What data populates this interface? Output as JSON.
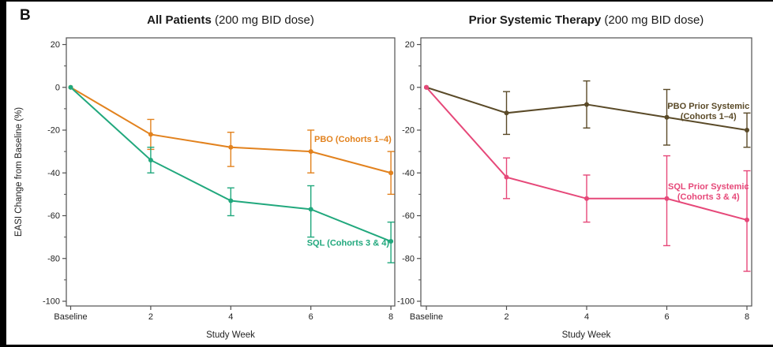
{
  "panel_letter": "B",
  "frame": {
    "border_color": "#000000",
    "background": "#ffffff",
    "axis_color": "#4f4f4f",
    "text_color": "#1f1f1f"
  },
  "chart_data": [
    {
      "type": "line",
      "title_bold": "All Patients",
      "title_rest": " (200 mg BID dose)",
      "xlabel": "Study Week",
      "ylabel": "EASI Change from Baseline (%)",
      "x_tick_labels": [
        "Baseline",
        "2",
        "4",
        "6",
        "8"
      ],
      "x_values": [
        0,
        2,
        4,
        6,
        8
      ],
      "y_ticks": [
        20,
        0,
        -20,
        -40,
        -60,
        -80,
        -100
      ],
      "y_minor_ticks": [
        10,
        -10,
        -30,
        -50,
        -70,
        -90
      ],
      "ylim": [
        -102,
        23
      ],
      "grid": false,
      "legend_position": "inline-annotations",
      "series": [
        {
          "name": "PBO (Cohorts 1–4)",
          "color": "#e2821e",
          "values": [
            0,
            -22,
            -28,
            -30,
            -40
          ],
          "err_hi": [
            null,
            -15,
            -21,
            -20,
            -30
          ],
          "err_lo": [
            null,
            -29,
            -37,
            -40,
            -50
          ],
          "annotation": {
            "lines": [
              "PBO (Cohorts 1–4)"
            ],
            "week": 7.05,
            "value": -24
          }
        },
        {
          "name": "SQL (Cohorts 3 & 4)",
          "color": "#21a87d",
          "values": [
            0,
            -34,
            -53,
            -57,
            -72
          ],
          "err_hi": [
            null,
            -28,
            -47,
            -46,
            -63
          ],
          "err_lo": [
            null,
            -40,
            -60,
            -70,
            -82
          ],
          "annotation": {
            "lines": [
              "SQL (Cohorts 3 & 4)"
            ],
            "week": 6.93,
            "value": -72.5
          }
        }
      ]
    },
    {
      "type": "line",
      "title_bold": "Prior Systemic Therapy",
      "title_rest": " (200 mg BID dose)",
      "xlabel": "Study Week",
      "ylabel": "",
      "x_tick_labels": [
        "Baseline",
        "2",
        "4",
        "6",
        "8"
      ],
      "x_values": [
        0,
        2,
        4,
        6,
        8
      ],
      "y_ticks": [
        20,
        0,
        -20,
        -40,
        -60,
        -80,
        -100
      ],
      "y_minor_ticks": [
        10,
        -10,
        -30,
        -50,
        -70,
        -90
      ],
      "ylim": [
        -102,
        23
      ],
      "grid": false,
      "legend_position": "inline-annotations",
      "series": [
        {
          "name": "PBO Prior Systemic (Cohorts 1–4)",
          "color": "#5a4a28",
          "values": [
            0,
            -12,
            -8,
            -14,
            -20
          ],
          "err_hi": [
            null,
            -2,
            3,
            -1,
            -12
          ],
          "err_lo": [
            null,
            -22,
            -19,
            -27,
            -28
          ],
          "annotation": {
            "lines": [
              "PBO Prior Systemic",
              "(Cohorts 1–4)"
            ],
            "week": 7.04,
            "value": -11
          }
        },
        {
          "name": "SQL Prior Systemic (Cohorts 3 & 4)",
          "color": "#e64879",
          "values": [
            0,
            -42,
            -52,
            -52,
            -62
          ],
          "err_hi": [
            null,
            -33,
            -41,
            -32,
            -39
          ],
          "err_lo": [
            null,
            -52,
            -63,
            -74,
            -86
          ],
          "annotation": {
            "lines": [
              "SQL Prior Systemic",
              "(Cohorts 3 & 4)"
            ],
            "week": 7.04,
            "value": -48.5
          }
        }
      ]
    }
  ]
}
